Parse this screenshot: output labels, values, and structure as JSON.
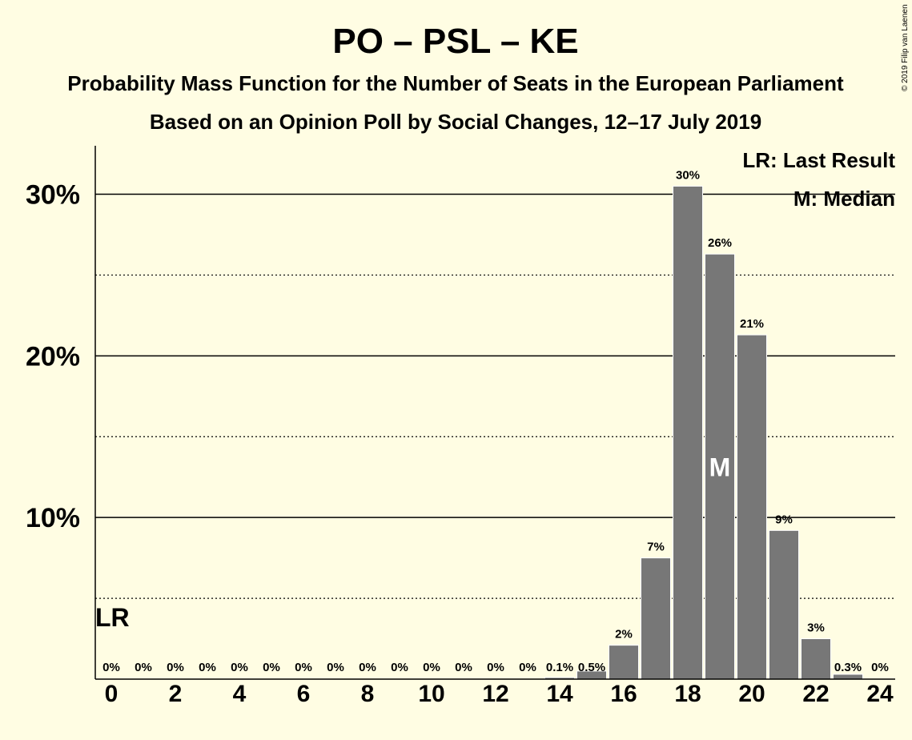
{
  "chart_data": {
    "type": "bar",
    "title": "PO – PSL – KE",
    "subtitle": "Probability Mass Function for the Number of Seats in the European Parliament",
    "subtitle2": "Based on an Opinion Poll by Social Changes, 12–17 July 2019",
    "copyright": "© 2019 Filip van Laenen",
    "x": [
      0,
      1,
      2,
      3,
      4,
      5,
      6,
      7,
      8,
      9,
      10,
      11,
      12,
      13,
      14,
      15,
      16,
      17,
      18,
      19,
      20,
      21,
      22,
      23,
      24
    ],
    "values": [
      0,
      0,
      0,
      0,
      0,
      0,
      0,
      0,
      0,
      0,
      0,
      0,
      0,
      0,
      0.1,
      0.5,
      2.1,
      7.5,
      30.5,
      26.3,
      21.3,
      9.2,
      2.5,
      0.3,
      0
    ],
    "data_labels": [
      "0%",
      "0%",
      "0%",
      "0%",
      "0%",
      "0%",
      "0%",
      "0%",
      "0%",
      "0%",
      "0%",
      "0%",
      "0%",
      "0%",
      "0.1%",
      "0.5%",
      "2%",
      "7%",
      "30%",
      "26%",
      "21%",
      "9%",
      "3%",
      "0.3%",
      "0%"
    ],
    "x_tick_labels": [
      "0",
      "2",
      "4",
      "6",
      "8",
      "10",
      "12",
      "14",
      "16",
      "18",
      "20",
      "22",
      "24"
    ],
    "y_tick_labels": [
      "10%",
      "20%",
      "30%"
    ],
    "ylim": [
      0,
      33
    ],
    "y_solid_gridlines": [
      10,
      20,
      30
    ],
    "y_dotted_gridlines": [
      5,
      15,
      25
    ],
    "last_result": {
      "seats": 0,
      "label": "LR"
    },
    "median": {
      "seats": 19,
      "label": "M"
    },
    "legend": {
      "placement": "top-right",
      "items": [
        "LR: Last Result",
        "M: Median"
      ]
    },
    "colors": {
      "background": "#FFFDE3",
      "bar": "#777777",
      "bar_edge": "#FFFFFF",
      "text": "#000000"
    }
  }
}
